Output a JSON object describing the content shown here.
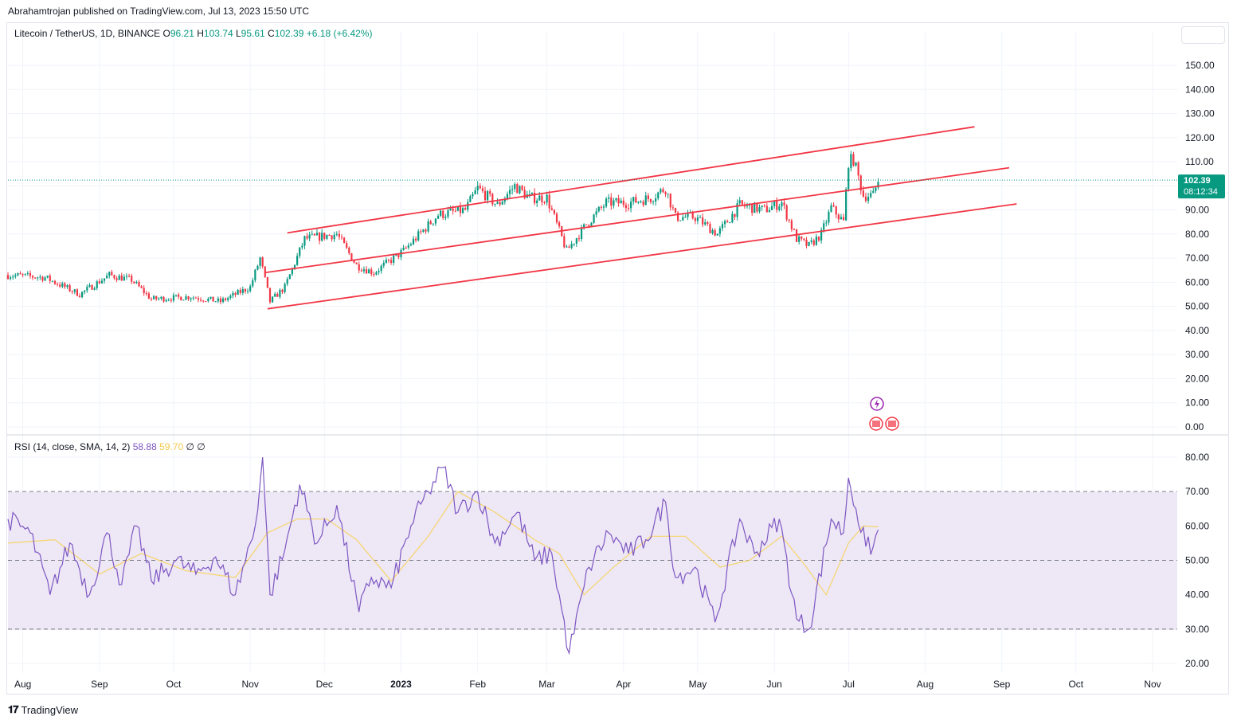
{
  "header": {
    "publisher": "Abrahamtrojan published on TradingView.com, Jul 13, 2023 15:50 UTC"
  },
  "legend": {
    "symbol": "Litecoin / TetherUS, 1D, BINANCE",
    "open_label": "O",
    "open": "96.21",
    "high_label": "H",
    "high": "103.74",
    "low_label": "L",
    "low": "95.61",
    "close_label": "C",
    "close": "102.39",
    "change": "+6.18 (+6.42%)"
  },
  "rsi_legend": {
    "label": "RSI (14, close, SMA, 14, 2)",
    "rsi": "58.88",
    "sma": "59.70",
    "extra1": "∅",
    "extra2": "∅"
  },
  "price_badge": {
    "price": "102.39",
    "countdown": "08:12:34"
  },
  "footer": {
    "brand": "TradingView",
    "brand_icon": "tradingview-logo-icon"
  },
  "colors": {
    "up": "#089981",
    "down": "#f23645",
    "channel": "#f23645",
    "rsi": "#7e57c2",
    "rsi_sma": "#f7d56a",
    "band": "#ede7f6"
  },
  "chart_data": [
    {
      "type": "candlestick",
      "y_ticks": [
        "150.00",
        "140.00",
        "130.00",
        "120.00",
        "110.00",
        "100.00",
        "90.00",
        "80.00",
        "70.00",
        "60.00",
        "50.00",
        "40.00",
        "30.00",
        "20.00",
        "10.00",
        "0.00"
      ],
      "x_ticks": [
        "Aug",
        "Sep",
        "Oct",
        "Nov",
        "Dec",
        "2023",
        "Feb",
        "Mar",
        "Apr",
        "May",
        "Jun",
        "Jul",
        "Aug",
        "Sep",
        "Oct",
        "Nov"
      ],
      "ylim": [
        0,
        160
      ],
      "last_price": 102.39,
      "channel_lines": [
        {
          "x": [
            "2022-11-16",
            "2023-08-21"
          ],
          "y": [
            80.5,
            124.5
          ]
        },
        {
          "x": [
            "2022-11-07",
            "2023-09-04"
          ],
          "y": [
            64,
            107.5
          ]
        },
        {
          "x": [
            "2022-11-08",
            "2023-09-07"
          ],
          "y": [
            49,
            92.5
          ]
        }
      ],
      "waypoints": [
        {
          "x": "2022-07-26",
          "y": 63
        },
        {
          "x": "2022-08-10",
          "y": 62
        },
        {
          "x": "2022-08-24",
          "y": 55
        },
        {
          "x": "2022-09-05",
          "y": 63
        },
        {
          "x": "2022-09-14",
          "y": 61
        },
        {
          "x": "2022-09-22",
          "y": 53
        },
        {
          "x": "2022-10-08",
          "y": 54
        },
        {
          "x": "2022-10-20",
          "y": 52
        },
        {
          "x": "2022-11-01",
          "y": 58
        },
        {
          "x": "2022-11-05",
          "y": 70
        },
        {
          "x": "2022-11-09",
          "y": 52
        },
        {
          "x": "2022-11-15",
          "y": 58
        },
        {
          "x": "2022-11-23",
          "y": 78
        },
        {
          "x": "2022-12-06",
          "y": 80
        },
        {
          "x": "2022-12-14",
          "y": 67
        },
        {
          "x": "2022-12-21",
          "y": 64
        },
        {
          "x": "2023-01-02",
          "y": 73
        },
        {
          "x": "2023-01-16",
          "y": 88
        },
        {
          "x": "2023-01-27",
          "y": 90
        },
        {
          "x": "2023-02-01",
          "y": 99
        },
        {
          "x": "2023-02-09",
          "y": 92
        },
        {
          "x": "2023-02-16",
          "y": 100
        },
        {
          "x": "2023-02-22",
          "y": 95
        },
        {
          "x": "2023-03-01",
          "y": 95
        },
        {
          "x": "2023-03-09",
          "y": 73
        },
        {
          "x": "2023-03-17",
          "y": 84
        },
        {
          "x": "2023-03-25",
          "y": 93
        },
        {
          "x": "2023-04-03",
          "y": 93
        },
        {
          "x": "2023-04-12",
          "y": 95
        },
        {
          "x": "2023-04-18",
          "y": 99
        },
        {
          "x": "2023-04-22",
          "y": 87
        },
        {
          "x": "2023-04-30",
          "y": 87
        },
        {
          "x": "2023-05-09",
          "y": 80
        },
        {
          "x": "2023-05-18",
          "y": 92
        },
        {
          "x": "2023-05-28",
          "y": 90
        },
        {
          "x": "2023-06-04",
          "y": 93
        },
        {
          "x": "2023-06-10",
          "y": 78
        },
        {
          "x": "2023-06-15",
          "y": 75
        },
        {
          "x": "2023-06-20",
          "y": 80
        },
        {
          "x": "2023-06-24",
          "y": 91
        },
        {
          "x": "2023-06-29",
          "y": 85
        },
        {
          "x": "2023-07-01",
          "y": 110
        },
        {
          "x": "2023-07-03",
          "y": 111
        },
        {
          "x": "2023-07-07",
          "y": 96
        },
        {
          "x": "2023-07-11",
          "y": 96
        },
        {
          "x": "2023-07-13",
          "y": 102.4
        }
      ]
    },
    {
      "type": "line",
      "y_ticks": [
        "80.00",
        "70.00",
        "60.00",
        "50.00",
        "40.00",
        "30.00",
        "20.00"
      ],
      "ylim": [
        18,
        83
      ],
      "bands": [
        70,
        50,
        30
      ],
      "series": [
        {
          "role": "rsi",
          "values": [
            {
              "x": "2022-07-26",
              "y": 62
            },
            {
              "x": "2022-08-04",
              "y": 58
            },
            {
              "x": "2022-08-12",
              "y": 40
            },
            {
              "x": "2022-08-20",
              "y": 55
            },
            {
              "x": "2022-08-28",
              "y": 40
            },
            {
              "x": "2022-09-04",
              "y": 58
            },
            {
              "x": "2022-09-10",
              "y": 43
            },
            {
              "x": "2022-09-16",
              "y": 60
            },
            {
              "x": "2022-09-22",
              "y": 44
            },
            {
              "x": "2022-10-02",
              "y": 50
            },
            {
              "x": "2022-10-10",
              "y": 46
            },
            {
              "x": "2022-10-18",
              "y": 51
            },
            {
              "x": "2022-10-26",
              "y": 40
            },
            {
              "x": "2022-11-03",
              "y": 60
            },
            {
              "x": "2022-11-06",
              "y": 80
            },
            {
              "x": "2022-11-09",
              "y": 40
            },
            {
              "x": "2022-11-15",
              "y": 53
            },
            {
              "x": "2022-11-21",
              "y": 72
            },
            {
              "x": "2022-11-28",
              "y": 55
            },
            {
              "x": "2022-12-06",
              "y": 66
            },
            {
              "x": "2022-12-15",
              "y": 35
            },
            {
              "x": "2022-12-20",
              "y": 45
            },
            {
              "x": "2022-12-28",
              "y": 42
            },
            {
              "x": "2023-01-05",
              "y": 60
            },
            {
              "x": "2023-01-12",
              "y": 70
            },
            {
              "x": "2023-01-18",
              "y": 77
            },
            {
              "x": "2023-01-24",
              "y": 64
            },
            {
              "x": "2023-02-01",
              "y": 70
            },
            {
              "x": "2023-02-08",
              "y": 55
            },
            {
              "x": "2023-02-17",
              "y": 64
            },
            {
              "x": "2023-02-24",
              "y": 50
            },
            {
              "x": "2023-03-03",
              "y": 52
            },
            {
              "x": "2023-03-10",
              "y": 23
            },
            {
              "x": "2023-03-18",
              "y": 48
            },
            {
              "x": "2023-03-26",
              "y": 58
            },
            {
              "x": "2023-04-03",
              "y": 52
            },
            {
              "x": "2023-04-10",
              "y": 56
            },
            {
              "x": "2023-04-18",
              "y": 67
            },
            {
              "x": "2023-04-22",
              "y": 45
            },
            {
              "x": "2023-04-30",
              "y": 48
            },
            {
              "x": "2023-05-08",
              "y": 32
            },
            {
              "x": "2023-05-18",
              "y": 62
            },
            {
              "x": "2023-05-24",
              "y": 52
            },
            {
              "x": "2023-06-03",
              "y": 62
            },
            {
              "x": "2023-06-10",
              "y": 33
            },
            {
              "x": "2023-06-15",
              "y": 30
            },
            {
              "x": "2023-06-24",
              "y": 62
            },
            {
              "x": "2023-06-29",
              "y": 58
            },
            {
              "x": "2023-07-01",
              "y": 74
            },
            {
              "x": "2023-07-04",
              "y": 65
            },
            {
              "x": "2023-07-08",
              "y": 54
            },
            {
              "x": "2023-07-11",
              "y": 54
            },
            {
              "x": "2023-07-13",
              "y": 58.88
            }
          ]
        },
        {
          "role": "rsi-sma",
          "values": [
            {
              "x": "2022-07-26",
              "y": 55
            },
            {
              "x": "2022-08-14",
              "y": 56
            },
            {
              "x": "2022-09-01",
              "y": 46
            },
            {
              "x": "2022-09-18",
              "y": 52
            },
            {
              "x": "2022-10-06",
              "y": 47
            },
            {
              "x": "2022-10-26",
              "y": 45
            },
            {
              "x": "2022-11-08",
              "y": 58
            },
            {
              "x": "2022-11-20",
              "y": 62
            },
            {
              "x": "2022-12-02",
              "y": 62
            },
            {
              "x": "2022-12-14",
              "y": 56
            },
            {
              "x": "2022-12-28",
              "y": 44
            },
            {
              "x": "2023-01-12",
              "y": 57
            },
            {
              "x": "2023-01-24",
              "y": 70
            },
            {
              "x": "2023-02-08",
              "y": 64
            },
            {
              "x": "2023-02-24",
              "y": 56
            },
            {
              "x": "2023-03-06",
              "y": 52
            },
            {
              "x": "2023-03-16",
              "y": 40
            },
            {
              "x": "2023-03-28",
              "y": 48
            },
            {
              "x": "2023-04-12",
              "y": 57
            },
            {
              "x": "2023-04-26",
              "y": 57
            },
            {
              "x": "2023-05-10",
              "y": 48
            },
            {
              "x": "2023-05-22",
              "y": 50
            },
            {
              "x": "2023-06-04",
              "y": 57
            },
            {
              "x": "2023-06-14",
              "y": 48
            },
            {
              "x": "2023-06-22",
              "y": 40
            },
            {
              "x": "2023-07-01",
              "y": 55
            },
            {
              "x": "2023-07-07",
              "y": 60
            },
            {
              "x": "2023-07-13",
              "y": 59.7
            }
          ]
        }
      ]
    }
  ]
}
